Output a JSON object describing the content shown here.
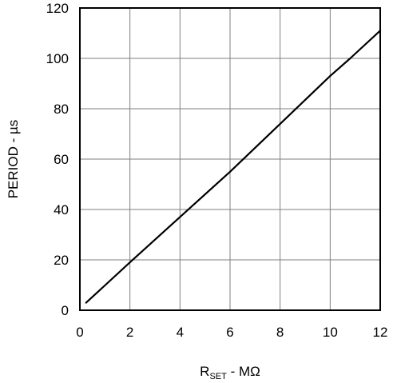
{
  "chart_data": {
    "type": "line",
    "title": "",
    "xlabel": {
      "main": "R",
      "sub": "SET",
      "suffix": " - MΩ"
    },
    "ylabel": "PERIOD - µs",
    "xlim": [
      0,
      12
    ],
    "ylim": [
      0,
      120
    ],
    "xticks": [
      "0",
      "2",
      "4",
      "6",
      "8",
      "10",
      "12"
    ],
    "yticks": [
      "0",
      "20",
      "40",
      "60",
      "80",
      "100",
      "120"
    ],
    "grid": true,
    "legend": "none",
    "series": [
      {
        "x": [
          0.25,
          2,
          4,
          6,
          8,
          10,
          10.8,
          12
        ],
        "y": [
          3,
          19,
          37,
          55,
          74,
          93,
          100,
          111
        ],
        "color": "#000000"
      }
    ]
  }
}
